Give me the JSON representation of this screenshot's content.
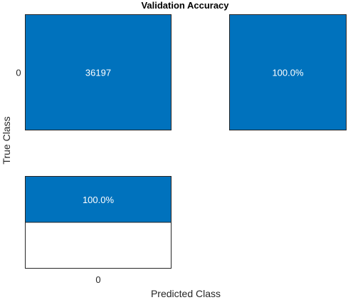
{
  "chart_data": {
    "type": "heatmap",
    "title": "Validation Accuracy",
    "xlabel": "Predicted Class",
    "ylabel": "True Class",
    "class_labels": [
      "0"
    ],
    "matrix": [
      [
        36197
      ]
    ],
    "row_summary": [
      {
        "label": "100.0%",
        "correct": 1.0
      }
    ],
    "column_summary": [
      {
        "label": "100.0%",
        "correct": 1.0
      }
    ],
    "colors": {
      "fill": "#0072bd",
      "cell_text": "#ffffff",
      "empty": "#ffffff",
      "border": "#262626"
    }
  }
}
